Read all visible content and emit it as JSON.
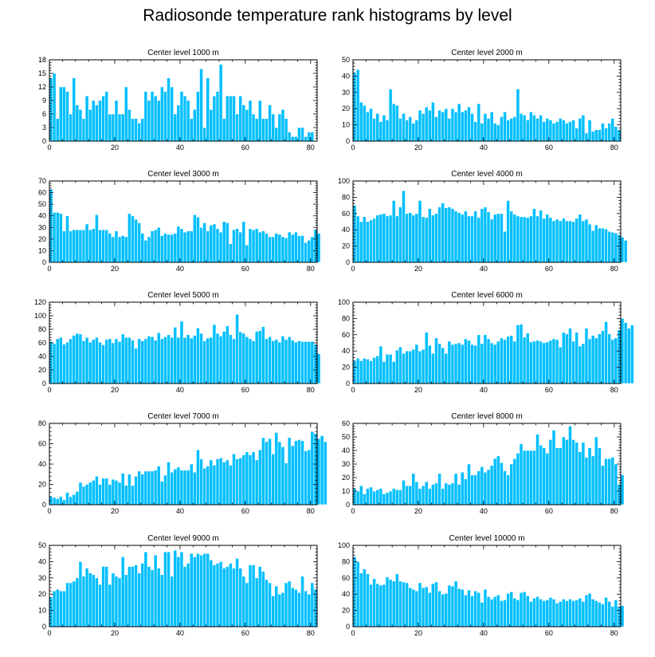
{
  "title": "Radiosonde temperature rank histograms by level",
  "colors": {
    "bar": "#00BFFF",
    "bar_edge": "#ffffff",
    "axis": "#000000"
  },
  "chart_data": [
    {
      "type": "bar",
      "title": "Center level 1000 m",
      "xlim": [
        0,
        82
      ],
      "ylim": [
        0,
        18
      ],
      "xticks": [
        0,
        20,
        40,
        60,
        80
      ],
      "yticks": [
        0,
        3,
        6,
        9,
        12,
        15,
        18
      ],
      "values": [
        14,
        15,
        5,
        12,
        12,
        11,
        6,
        14,
        8,
        7,
        5,
        10,
        7,
        9,
        8,
        9,
        10,
        11,
        6,
        6,
        9,
        6,
        6,
        12,
        7,
        5,
        5,
        4,
        5,
        11,
        9,
        11,
        10,
        9,
        12,
        11,
        14,
        12,
        6,
        8,
        11,
        10,
        9,
        5,
        7,
        11,
        16,
        3,
        14,
        7,
        10,
        11,
        17,
        5,
        10,
        10,
        10,
        6,
        10,
        8,
        7,
        9,
        6,
        5,
        9,
        5,
        5,
        8,
        6,
        3,
        6,
        7,
        5,
        2,
        1,
        1,
        3,
        3,
        1,
        2,
        2
      ]
    },
    {
      "type": "bar",
      "title": "Center level 2000 m",
      "xlim": [
        0,
        82
      ],
      "ylim": [
        0,
        50
      ],
      "xticks": [
        0,
        20,
        40,
        60,
        80
      ],
      "yticks": [
        0,
        10,
        20,
        30,
        40,
        50
      ],
      "values": [
        42,
        44,
        24,
        22,
        18,
        20,
        14,
        17,
        12,
        16,
        13,
        32,
        23,
        22,
        14,
        17,
        13,
        15,
        11,
        13,
        19,
        17,
        21,
        19,
        24,
        15,
        19,
        18,
        20,
        14,
        20,
        18,
        23,
        18,
        19,
        21,
        17,
        12,
        23,
        11,
        17,
        14,
        18,
        11,
        10,
        15,
        18,
        13,
        14,
        15,
        32,
        17,
        16,
        13,
        18,
        16,
        14,
        16,
        12,
        14,
        13,
        11,
        12,
        14,
        13,
        11,
        12,
        13,
        8,
        14,
        16,
        5,
        13,
        6,
        7,
        7,
        11,
        8,
        11,
        14,
        9,
        7
      ]
    },
    {
      "type": "bar",
      "title": "Center level 3000 m",
      "xlim": [
        0,
        82
      ],
      "ylim": [
        0,
        70
      ],
      "xticks": [
        0,
        20,
        40,
        60,
        80
      ],
      "yticks": [
        0,
        10,
        20,
        30,
        40,
        50,
        60,
        70
      ],
      "values": [
        63,
        43,
        43,
        42,
        27,
        40,
        27,
        28,
        28,
        28,
        28,
        33,
        28,
        29,
        41,
        28,
        28,
        28,
        25,
        22,
        27,
        22,
        23,
        22,
        42,
        40,
        37,
        34,
        25,
        19,
        22,
        27,
        28,
        30,
        23,
        25,
        24,
        24,
        25,
        31,
        29,
        26,
        27,
        27,
        41,
        39,
        30,
        34,
        27,
        32,
        33,
        29,
        26,
        35,
        34,
        16,
        28,
        29,
        26,
        35,
        15,
        29,
        28,
        29,
        26,
        27,
        25,
        22,
        22,
        25,
        24,
        22,
        21,
        26,
        24,
        26,
        23,
        23,
        17,
        19,
        22,
        28,
        25
      ]
    },
    {
      "type": "bar",
      "title": "Center level 4000 m",
      "xlim": [
        0,
        82
      ],
      "ylim": [
        0,
        100
      ],
      "xticks": [
        0,
        20,
        40,
        60,
        80
      ],
      "yticks": [
        0,
        20,
        40,
        60,
        80,
        100
      ],
      "values": [
        70,
        57,
        50,
        56,
        50,
        52,
        54,
        58,
        59,
        60,
        57,
        58,
        76,
        57,
        68,
        88,
        60,
        61,
        58,
        60,
        76,
        56,
        55,
        66,
        58,
        60,
        68,
        73,
        67,
        68,
        66,
        63,
        61,
        59,
        63,
        57,
        57,
        63,
        55,
        66,
        68,
        62,
        53,
        59,
        60,
        60,
        38,
        76,
        63,
        59,
        57,
        56,
        56,
        55,
        57,
        66,
        57,
        64,
        54,
        59,
        55,
        51,
        53,
        51,
        54,
        51,
        51,
        50,
        54,
        59,
        51,
        53,
        47,
        39,
        46,
        42,
        42,
        41,
        38,
        37,
        36,
        34,
        31,
        27
      ]
    },
    {
      "type": "bar",
      "title": "Center level 5000 m",
      "xlim": [
        0,
        82
      ],
      "ylim": [
        0,
        120
      ],
      "xticks": [
        0,
        20,
        40,
        60,
        80
      ],
      "yticks": [
        0,
        20,
        40,
        60,
        80,
        100,
        120
      ],
      "values": [
        62,
        59,
        66,
        68,
        58,
        61,
        66,
        71,
        74,
        73,
        63,
        68,
        61,
        65,
        68,
        61,
        57,
        65,
        66,
        60,
        66,
        62,
        73,
        68,
        68,
        64,
        52,
        66,
        63,
        66,
        70,
        69,
        64,
        75,
        66,
        69,
        72,
        68,
        83,
        68,
        92,
        68,
        72,
        67,
        71,
        82,
        74,
        63,
        67,
        68,
        87,
        74,
        70,
        77,
        85,
        72,
        66,
        102,
        76,
        74,
        69,
        66,
        63,
        77,
        78,
        84,
        66,
        69,
        63,
        65,
        61,
        70,
        65,
        69,
        64,
        61,
        63,
        62,
        62,
        62,
        62,
        58,
        44
      ]
    },
    {
      "type": "bar",
      "title": "Center level 6000 m",
      "xlim": [
        0,
        82
      ],
      "ylim": [
        0,
        100
      ],
      "xticks": [
        0,
        20,
        40,
        60,
        80
      ],
      "yticks": [
        0,
        20,
        40,
        60,
        80,
        100
      ],
      "values": [
        28,
        31,
        28,
        31,
        30,
        28,
        32,
        34,
        46,
        27,
        36,
        36,
        27,
        41,
        45,
        37,
        40,
        40,
        42,
        48,
        40,
        42,
        63,
        47,
        37,
        56,
        49,
        44,
        37,
        52,
        48,
        49,
        50,
        48,
        55,
        53,
        48,
        47,
        60,
        49,
        60,
        55,
        50,
        48,
        52,
        56,
        54,
        58,
        59,
        52,
        72,
        73,
        57,
        62,
        51,
        52,
        53,
        52,
        50,
        51,
        53,
        55,
        54,
        45,
        63,
        61,
        68,
        52,
        63,
        46,
        49,
        68,
        55,
        59,
        56,
        61,
        65,
        76,
        61,
        54,
        56,
        66,
        80,
        75,
        68,
        72
      ]
    },
    {
      "type": "bar",
      "title": "Center level 7000 m",
      "xlim": [
        0,
        82
      ],
      "ylim": [
        0,
        80
      ],
      "xticks": [
        0,
        20,
        40,
        60,
        80
      ],
      "yticks": [
        0,
        20,
        40,
        60,
        80
      ],
      "values": [
        8,
        7,
        6,
        8,
        5,
        12,
        8,
        10,
        13,
        22,
        18,
        20,
        22,
        24,
        28,
        20,
        26,
        26,
        20,
        25,
        24,
        22,
        31,
        19,
        30,
        19,
        28,
        33,
        30,
        33,
        33,
        33,
        34,
        38,
        23,
        29,
        42,
        32,
        35,
        37,
        34,
        34,
        34,
        40,
        32,
        54,
        45,
        36,
        38,
        44,
        39,
        45,
        46,
        42,
        44,
        39,
        50,
        45,
        46,
        49,
        52,
        49,
        52,
        44,
        54,
        66,
        62,
        65,
        50,
        71,
        62,
        57,
        41,
        66,
        58,
        63,
        64,
        63,
        53,
        54,
        72,
        70,
        65,
        68,
        62
      ]
    },
    {
      "type": "bar",
      "title": "Center level 8000 m",
      "xlim": [
        0,
        82
      ],
      "ylim": [
        0,
        60
      ],
      "xticks": [
        0,
        20,
        40,
        60,
        80
      ],
      "yticks": [
        0,
        10,
        20,
        30,
        40,
        50,
        60
      ],
      "values": [
        12,
        10,
        14,
        8,
        12,
        13,
        10,
        11,
        12,
        8,
        9,
        10,
        12,
        11,
        11,
        18,
        14,
        14,
        23,
        17,
        12,
        14,
        17,
        12,
        15,
        16,
        23,
        12,
        16,
        15,
        16,
        23,
        15,
        24,
        19,
        30,
        22,
        22,
        25,
        28,
        24,
        26,
        29,
        34,
        36,
        31,
        25,
        22,
        30,
        34,
        38,
        45,
        40,
        40,
        40,
        40,
        52,
        44,
        42,
        38,
        48,
        55,
        42,
        42,
        50,
        48,
        58,
        48,
        46,
        39,
        46,
        35,
        42,
        36,
        50,
        42,
        29,
        34,
        34,
        35,
        30,
        15,
        22
      ]
    },
    {
      "type": "bar",
      "title": "Center level 9000 m",
      "xlim": [
        0,
        82
      ],
      "ylim": [
        0,
        50
      ],
      "xticks": [
        0,
        20,
        40,
        60,
        80
      ],
      "yticks": [
        0,
        10,
        20,
        30,
        40,
        50
      ],
      "values": [
        18,
        22,
        23,
        22,
        22,
        27,
        27,
        28,
        30,
        40,
        31,
        36,
        33,
        32,
        30,
        26,
        37,
        37,
        26,
        33,
        31,
        30,
        43,
        32,
        37,
        37,
        38,
        33,
        39,
        46,
        37,
        35,
        44,
        36,
        32,
        46,
        46,
        31,
        47,
        43,
        46,
        37,
        39,
        45,
        43,
        45,
        44,
        45,
        45,
        41,
        38,
        39,
        40,
        36,
        37,
        39,
        36,
        42,
        36,
        31,
        27,
        38,
        38,
        30,
        37,
        34,
        29,
        27,
        19,
        25,
        20,
        21,
        27,
        28,
        24,
        23,
        21,
        31,
        22,
        20,
        27,
        23
      ]
    },
    {
      "type": "bar",
      "title": "Center level 10000 m",
      "xlim": [
        0,
        82
      ],
      "ylim": [
        0,
        100
      ],
      "xticks": [
        0,
        20,
        40,
        60,
        80
      ],
      "yticks": [
        0,
        20,
        40,
        60,
        80,
        100
      ],
      "values": [
        86,
        80,
        66,
        71,
        65,
        52,
        59,
        53,
        51,
        52,
        61,
        58,
        56,
        65,
        56,
        55,
        54,
        48,
        46,
        44,
        54,
        48,
        49,
        42,
        53,
        55,
        44,
        40,
        41,
        51,
        50,
        56,
        47,
        46,
        39,
        45,
        38,
        44,
        42,
        30,
        46,
        37,
        34,
        37,
        39,
        32,
        33,
        41,
        43,
        35,
        33,
        42,
        43,
        38,
        31,
        35,
        37,
        34,
        32,
        33,
        36,
        34,
        29,
        31,
        34,
        32,
        34,
        32,
        33,
        35,
        31,
        39,
        41,
        34,
        32,
        30,
        28,
        36,
        31,
        25,
        33,
        25,
        26
      ]
    }
  ]
}
